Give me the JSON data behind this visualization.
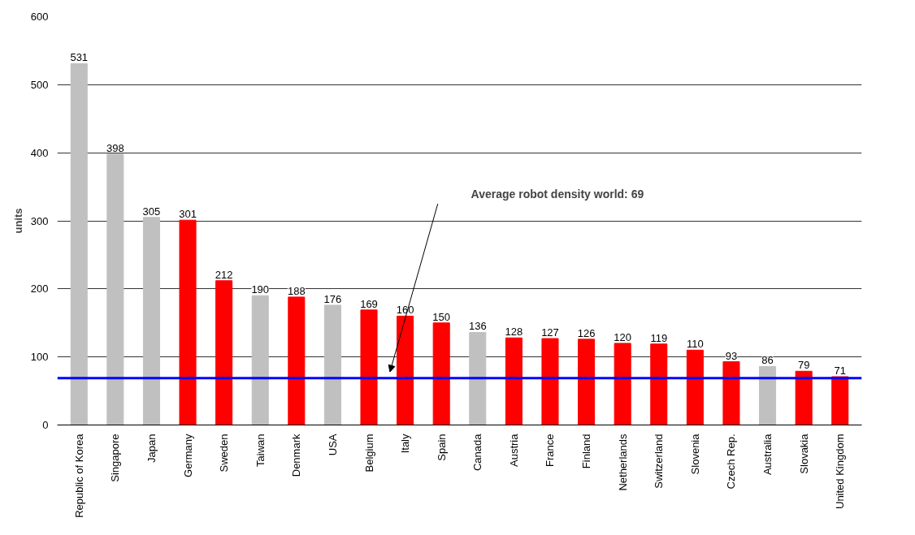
{
  "chart_data": {
    "type": "bar",
    "ylabel": "units",
    "categories": [
      "Republic of Korea",
      "Singapore",
      "Japan",
      "Germany",
      "Sweden",
      "Taiwan",
      "Denmark",
      "USA",
      "Belgium",
      "Italy",
      "Spain",
      "Canada",
      "Austria",
      "France",
      "Finland",
      "Netherlands",
      "Switzerland",
      "Slovenia",
      "Czech Rep.",
      "Australia",
      "Slovakia",
      "United Kingdom"
    ],
    "values": [
      531,
      398,
      305,
      301,
      212,
      190,
      188,
      176,
      169,
      160,
      150,
      136,
      128,
      127,
      126,
      120,
      119,
      110,
      93,
      86,
      79,
      71
    ],
    "colors": [
      "#c0c0c0",
      "#c0c0c0",
      "#c0c0c0",
      "#ff0000",
      "#ff0000",
      "#c0c0c0",
      "#ff0000",
      "#c0c0c0",
      "#ff0000",
      "#ff0000",
      "#ff0000",
      "#c0c0c0",
      "#ff0000",
      "#ff0000",
      "#ff0000",
      "#ff0000",
      "#ff0000",
      "#ff0000",
      "#ff0000",
      "#c0c0c0",
      "#ff0000",
      "#ff0000"
    ],
    "ylim": [
      0,
      600
    ],
    "yticks": [
      0,
      100,
      200,
      300,
      400,
      500,
      600
    ],
    "grid": "y",
    "data_labels": true,
    "annotations": [
      "Average robot density world: 69"
    ],
    "ref_lines": [
      {
        "axis": "y",
        "value": 69,
        "color": "#0000ff"
      }
    ]
  }
}
